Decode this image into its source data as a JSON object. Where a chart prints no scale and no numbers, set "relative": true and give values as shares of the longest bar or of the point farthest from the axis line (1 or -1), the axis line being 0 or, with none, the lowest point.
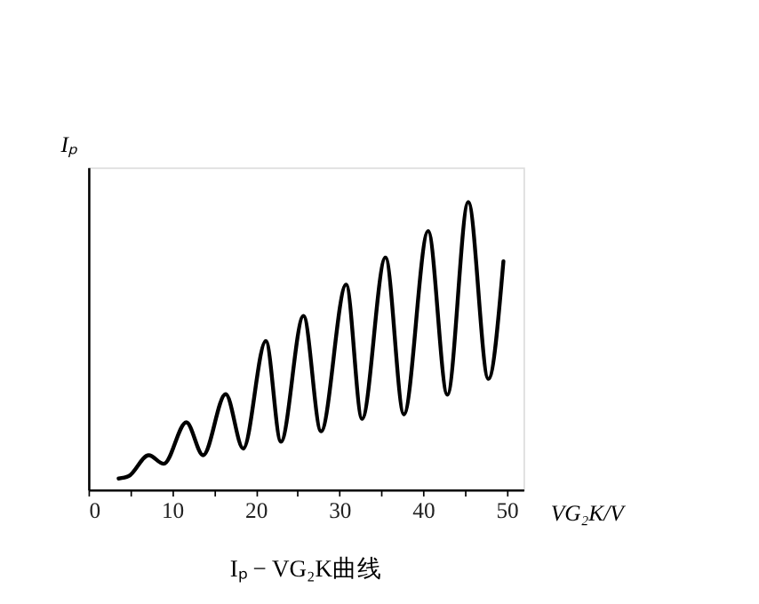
{
  "chart_data": {
    "type": "line",
    "relative": true,
    "title": "Iₚ − VG₂K曲线",
    "xlabel": "VG₂K/V",
    "ylabel": "Iₚ",
    "xlim": [
      0,
      52
    ],
    "xticks": [
      0,
      {
        "value": 5,
        "label": null
      },
      10,
      {
        "value": 15,
        "label": null
      },
      20,
      {
        "value": 25,
        "label": null
      },
      30,
      {
        "value": 35,
        "label": null
      },
      40,
      {
        "value": 45,
        "label": null
      },
      50
    ],
    "grid": false,
    "marker": "none",
    "line_style": "solid",
    "series": [
      {
        "color": "#000000",
        "x": [
          3.6,
          4.8,
          7.2,
          9.0,
          11.7,
          13.7,
          16.4,
          18.5,
          21.2,
          23.0,
          25.7,
          27.8,
          30.8,
          32.7,
          35.5,
          37.7,
          40.6,
          42.9,
          45.4,
          47.8,
          49.6
        ],
        "values": [
          0.039,
          0.047,
          0.12,
          0.09,
          0.234,
          0.12,
          0.332,
          0.143,
          0.517,
          0.167,
          0.604,
          0.203,
          0.713,
          0.246,
          0.807,
          0.262,
          0.899,
          0.33,
          1.0,
          0.385,
          0.794
        ]
      }
    ]
  }
}
